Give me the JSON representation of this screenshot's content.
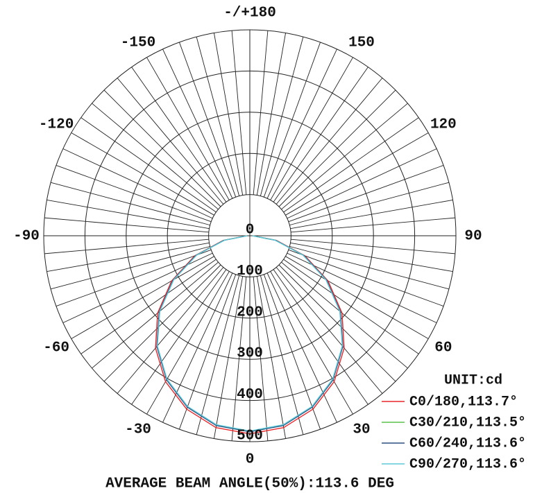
{
  "chart_data": {
    "type": "polar",
    "subtitle": "AVERAGE BEAM ANGLE(50%):113.6 DEG",
    "legend_title": "UNIT:cd",
    "x": [
      -90,
      -80,
      -70,
      -60,
      -50,
      -40,
      -30,
      -20,
      -10,
      0,
      10,
      20,
      30,
      40,
      50,
      60,
      70,
      80,
      90
    ],
    "series": [
      {
        "name": "C0/180,113.7°",
        "color": "#e8262a",
        "values": [
          8,
          66,
          142,
          219,
          292,
          356,
          409,
          448,
          473,
          481,
          473,
          448,
          409,
          356,
          292,
          219,
          142,
          66,
          8
        ]
      },
      {
        "name": "C30/210,113.5°",
        "color": "#5ac24a",
        "values": [
          6,
          63,
          138,
          214,
          286,
          350,
          403,
          442,
          467,
          475,
          467,
          442,
          403,
          350,
          286,
          214,
          138,
          63,
          6
        ]
      },
      {
        "name": "C60/240,113.6°",
        "color": "#2a4f7e",
        "values": [
          6,
          64,
          139,
          215,
          287,
          351,
          404,
          443,
          468,
          476,
          468,
          443,
          404,
          351,
          287,
          215,
          139,
          64,
          6
        ]
      },
      {
        "name": "C90/270,113.6°",
        "color": "#5ac8d8",
        "values": [
          6,
          62,
          137,
          213,
          285,
          349,
          402,
          441,
          466,
          474,
          466,
          441,
          402,
          349,
          285,
          213,
          137,
          62,
          6
        ]
      }
    ],
    "rlim": [
      0,
      500
    ],
    "rticks": [
      0,
      100,
      200,
      300,
      400,
      500
    ],
    "angle_ticks": [
      0,
      30,
      60,
      90,
      120,
      150,
      {
        "value": 180,
        "label": "-/+180"
      },
      -150,
      -120,
      -90,
      -60,
      -30
    ],
    "angular_grid_step": 5,
    "grid": true
  }
}
